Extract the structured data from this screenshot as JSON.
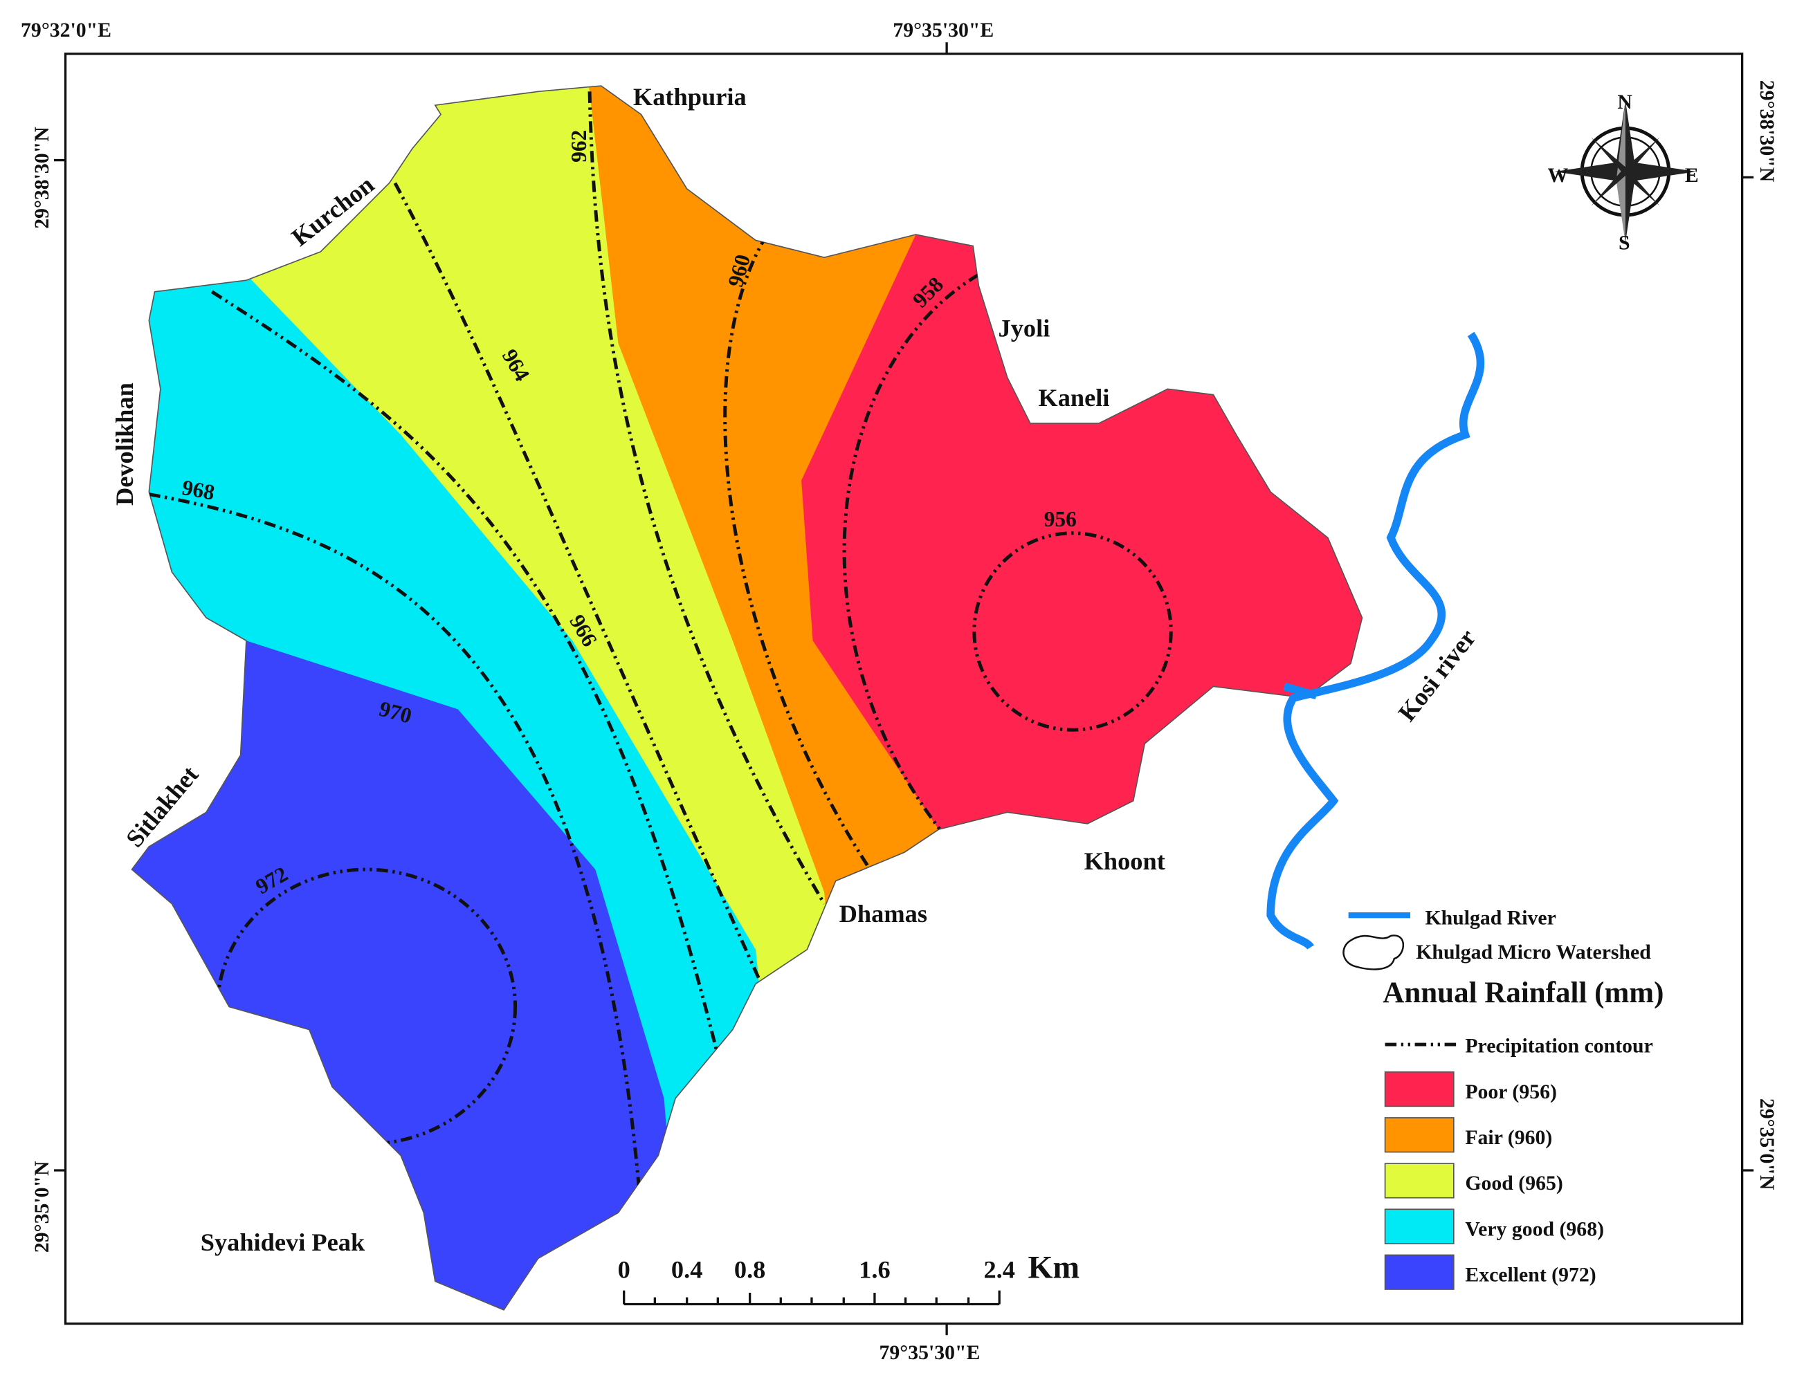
{
  "coordinates": {
    "top_left": "79°32'0\"E",
    "top_center": "79°35'30\"E",
    "bottom_center": "79°35'30\"E",
    "left_top": "29°38'30\"N",
    "left_bottom": "29°35'0\"N",
    "right_top": "29°38'30\"N",
    "right_bottom": "29°35'0\"N"
  },
  "places": {
    "kathpuria": "Kathpuria",
    "kurchon": "Kurchon",
    "devolikhan": "Devolikhan",
    "jyoli": "Jyoli",
    "kaneli": "Kaneli",
    "sitlakhet": "Sitlakhet",
    "khoont": "Khoont",
    "dhamas": "Dhamas",
    "syahidevi": "Syahidevi Peak",
    "kosi": "Kosi river"
  },
  "contours": {
    "c956": "956",
    "c958": "958",
    "c960": "960",
    "c962": "962",
    "c964": "964",
    "c966": "966",
    "c968": "968",
    "c970": "970",
    "c972": "972"
  },
  "compass": {
    "n": "N",
    "s": "S",
    "e": "E",
    "w": "W"
  },
  "scale_bar": {
    "ticks": [
      "0",
      "0.4",
      "0.8",
      "1.6",
      "2.4"
    ],
    "unit": "Km"
  },
  "legend": {
    "river": "Khulgad River",
    "watershed": "Khulgad Micro Watershed",
    "title": "Annual Rainfall (mm)",
    "contour": "Precipitation contour",
    "classes": [
      {
        "label": "Poor (956)",
        "color": "#ff2450"
      },
      {
        "label": "Fair (960)",
        "color": "#ff9400"
      },
      {
        "label": "Good (965)",
        "color": "#e1fb3c"
      },
      {
        "label": "Very good (968)",
        "color": "#00eaf6"
      },
      {
        "label": "Excellent (972)",
        "color": "#3a44fd"
      }
    ]
  }
}
